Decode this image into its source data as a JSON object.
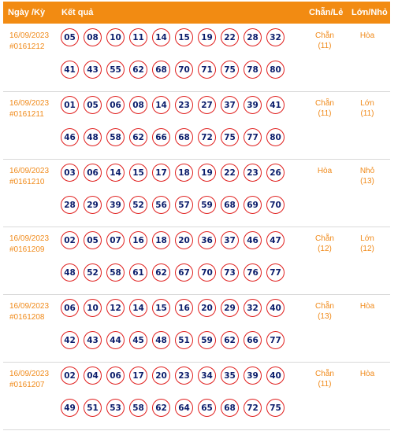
{
  "header": {
    "date_label": "Ngày /Kỳ",
    "result_label": "Kết quả",
    "cl_label": "Chẵn/Lẻ",
    "ln_label": "Lớn/Nhỏ"
  },
  "rows": [
    {
      "date": "16/09/2023",
      "period": "#0161212",
      "numbers1": [
        "05",
        "08",
        "10",
        "11",
        "14",
        "15",
        "19",
        "22",
        "28",
        "32"
      ],
      "numbers2": [
        "41",
        "43",
        "55",
        "62",
        "68",
        "70",
        "71",
        "75",
        "78",
        "80"
      ],
      "cl": "Chẵn",
      "cl_count": "(11)",
      "ln": "Hòa",
      "ln_count": ""
    },
    {
      "date": "16/09/2023",
      "period": "#0161211",
      "numbers1": [
        "01",
        "05",
        "06",
        "08",
        "14",
        "23",
        "27",
        "37",
        "39",
        "41"
      ],
      "numbers2": [
        "46",
        "48",
        "58",
        "62",
        "66",
        "68",
        "72",
        "75",
        "77",
        "80"
      ],
      "cl": "Chẵn",
      "cl_count": "(11)",
      "ln": "Lớn",
      "ln_count": "(11)"
    },
    {
      "date": "16/09/2023",
      "period": "#0161210",
      "numbers1": [
        "03",
        "06",
        "14",
        "15",
        "17",
        "18",
        "19",
        "22",
        "23",
        "26"
      ],
      "numbers2": [
        "28",
        "29",
        "39",
        "52",
        "56",
        "57",
        "59",
        "68",
        "69",
        "70"
      ],
      "cl": "Hòa",
      "cl_count": "",
      "ln": "Nhỏ",
      "ln_count": "(13)"
    },
    {
      "date": "16/09/2023",
      "period": "#0161209",
      "numbers1": [
        "02",
        "05",
        "07",
        "16",
        "18",
        "20",
        "36",
        "37",
        "46",
        "47"
      ],
      "numbers2": [
        "48",
        "52",
        "58",
        "61",
        "62",
        "67",
        "70",
        "73",
        "76",
        "77"
      ],
      "cl": "Chẵn",
      "cl_count": "(12)",
      "ln": "Lớn",
      "ln_count": "(12)"
    },
    {
      "date": "16/09/2023",
      "period": "#0161208",
      "numbers1": [
        "06",
        "10",
        "12",
        "14",
        "15",
        "16",
        "20",
        "29",
        "32",
        "40"
      ],
      "numbers2": [
        "42",
        "43",
        "44",
        "45",
        "48",
        "51",
        "59",
        "62",
        "66",
        "77"
      ],
      "cl": "Chẵn",
      "cl_count": "(13)",
      "ln": "Hòa",
      "ln_count": ""
    },
    {
      "date": "16/09/2023",
      "period": "#0161207",
      "numbers1": [
        "02",
        "04",
        "06",
        "17",
        "20",
        "23",
        "34",
        "35",
        "39",
        "40"
      ],
      "numbers2": [
        "49",
        "51",
        "53",
        "58",
        "62",
        "64",
        "65",
        "68",
        "72",
        "75"
      ],
      "cl": "Chẵn",
      "cl_count": "(11)",
      "ln": "Hòa",
      "ln_count": ""
    }
  ]
}
